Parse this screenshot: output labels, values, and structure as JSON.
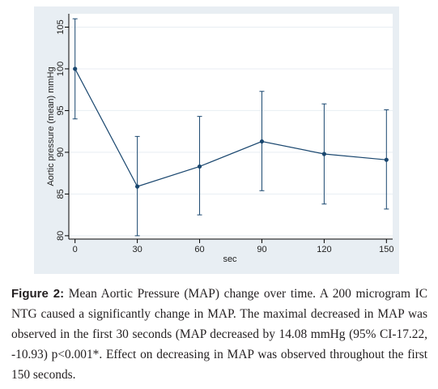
{
  "figure": {
    "panel_bg": "#e8eef3",
    "plot_bg": "#ffffff",
    "line_color": "#1a476f",
    "grid_color": "#e8eef3"
  },
  "chart_data": {
    "type": "line",
    "title": "",
    "xlabel": "sec",
    "ylabel": "Aortic pressure (mean) mmHg",
    "x": [
      0,
      30,
      60,
      90,
      120,
      150
    ],
    "xticks": [
      0,
      30,
      60,
      90,
      120,
      150
    ],
    "yticks": [
      80,
      85,
      90,
      95,
      100,
      105
    ],
    "xlim": [
      -3,
      153
    ],
    "ylim": [
      79.6,
      106.6
    ],
    "grid": true,
    "series": [
      {
        "values": [
          100.0,
          85.9,
          88.3,
          91.3,
          89.8,
          89.1
        ],
        "ci_low": [
          94.0,
          80.0,
          82.5,
          85.4,
          83.8,
          83.2
        ],
        "ci_high": [
          106.0,
          91.9,
          94.3,
          97.3,
          95.8,
          95.1
        ]
      }
    ]
  },
  "caption": {
    "label": "Figure 2:",
    "text": " Mean Aortic Pressure (MAP) change over time. A 200 microgram IC NTG caused a significantly change in MAP. The maximal decreased in MAP was observed in the first 30 seconds (MAP decreased by 14.08 mmHg (95% CI-17.22, -10.93) p<0.001*. Effect on decreasing in MAP was observed throughout the first 150 seconds."
  }
}
